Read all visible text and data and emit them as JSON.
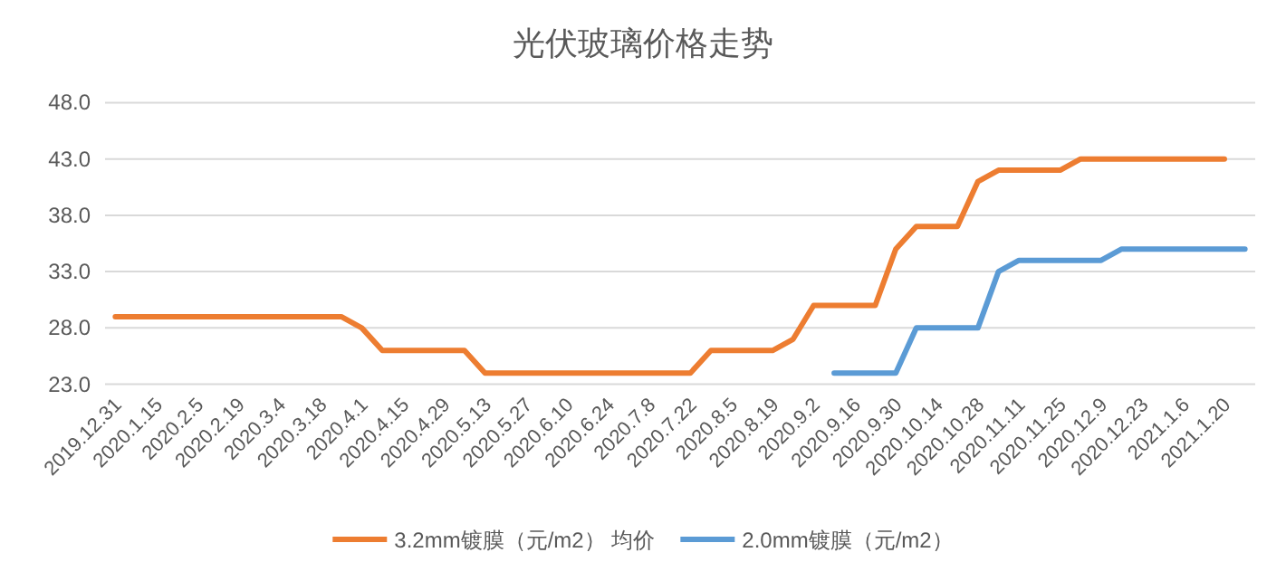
{
  "chart_data": {
    "type": "line",
    "title": "光伏玻璃价格走势",
    "categories": [
      "2019.12.31",
      null,
      "2020.1.15",
      null,
      "2020.2.5",
      null,
      "2020.2.19",
      null,
      "2020.3.4",
      null,
      "2020.3.18",
      null,
      "2020.4.1",
      null,
      "2020.4.15",
      null,
      "2020.4.29",
      null,
      "2020.5.13",
      null,
      "2020.5.27",
      null,
      "2020.6.10",
      null,
      "2020.6.24",
      null,
      "2020.7.8",
      null,
      "2020.7.22",
      null,
      "2020.8.5",
      null,
      "2020.8.19",
      null,
      "2020.9.2",
      null,
      "2020.9.16",
      null,
      "2020.9.30",
      null,
      "2020.10.14",
      null,
      "2020.10.28",
      null,
      "2020.11.11",
      null,
      "2020.11.25",
      null,
      "2020.12.9",
      null,
      "2020.12.23",
      null,
      "2021.1.6",
      null,
      "2021.1.20",
      null
    ],
    "series": [
      {
        "name": "3.2mm镀膜（元/m2） 均价",
        "color": "#ed7d31",
        "values": [
          29,
          29,
          29,
          29,
          29,
          29,
          29,
          29,
          29,
          29,
          29,
          29,
          28,
          26,
          26,
          26,
          26,
          26,
          24,
          24,
          24,
          24,
          24,
          24,
          24,
          24,
          24,
          24,
          24,
          26,
          26,
          26,
          26,
          27,
          30,
          30,
          30,
          30,
          35,
          37,
          37,
          37,
          41,
          42,
          42,
          42,
          42,
          43,
          43,
          43,
          43,
          43,
          43,
          43,
          43,
          null
        ]
      },
      {
        "name": "2.0mm镀膜（元/m2）",
        "color": "#5b9bd5",
        "values": [
          null,
          null,
          null,
          null,
          null,
          null,
          null,
          null,
          null,
          null,
          null,
          null,
          null,
          null,
          null,
          null,
          null,
          null,
          null,
          null,
          null,
          null,
          null,
          null,
          null,
          null,
          null,
          null,
          null,
          null,
          null,
          null,
          null,
          null,
          null,
          24,
          24,
          24,
          24,
          28,
          28,
          28,
          28,
          33,
          34,
          34,
          34,
          34,
          34,
          35,
          35,
          35,
          35,
          35,
          35,
          35
        ]
      }
    ],
    "ylim": [
      23,
      48
    ],
    "yticks": [
      {
        "value": 23,
        "label": "23.0"
      },
      {
        "value": 28,
        "label": "28.0"
      },
      {
        "value": 33,
        "label": "33.0"
      },
      {
        "value": 38,
        "label": "38.0"
      },
      {
        "value": 43,
        "label": "43.0"
      },
      {
        "value": 48,
        "label": "48.0"
      }
    ],
    "grid": "y",
    "legend": "bottom",
    "marker": "none",
    "line_style": "solid"
  }
}
